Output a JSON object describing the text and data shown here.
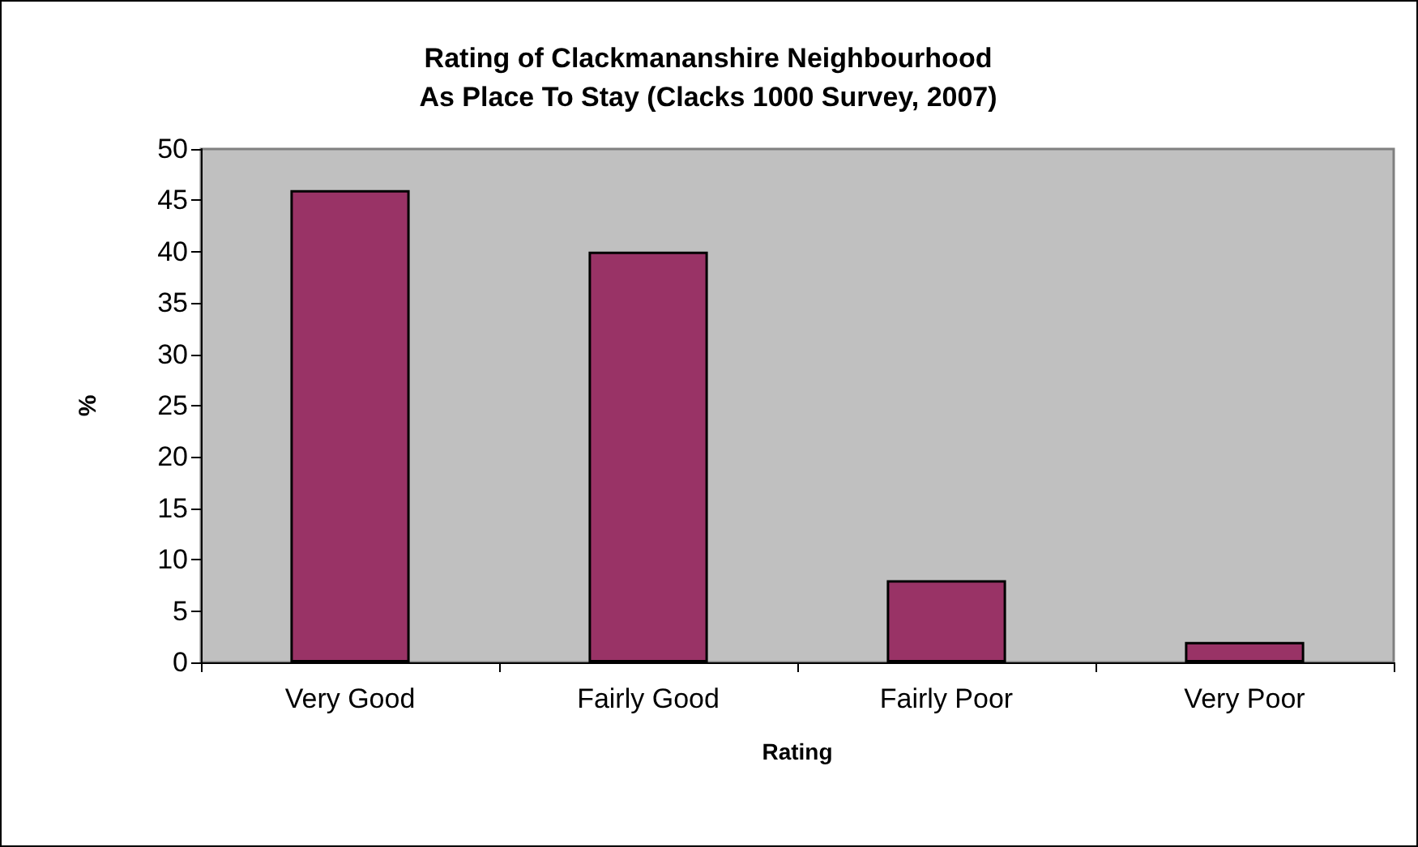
{
  "chart_data": {
    "type": "bar",
    "title": "Rating of Clackmananshire Neighbourhood\nAs Place To Stay (Clacks 1000 Survey, 2007)",
    "xlabel": "Rating",
    "ylabel": "%",
    "categories": [
      "Very Good",
      "Fairly Good",
      "Fairly Poor",
      "Very Poor"
    ],
    "values": [
      46,
      40,
      8,
      2
    ],
    "color": "#993366",
    "ylim": [
      0,
      50
    ],
    "yticks": [
      0,
      5,
      10,
      15,
      20,
      25,
      30,
      35,
      40,
      45,
      50
    ]
  }
}
